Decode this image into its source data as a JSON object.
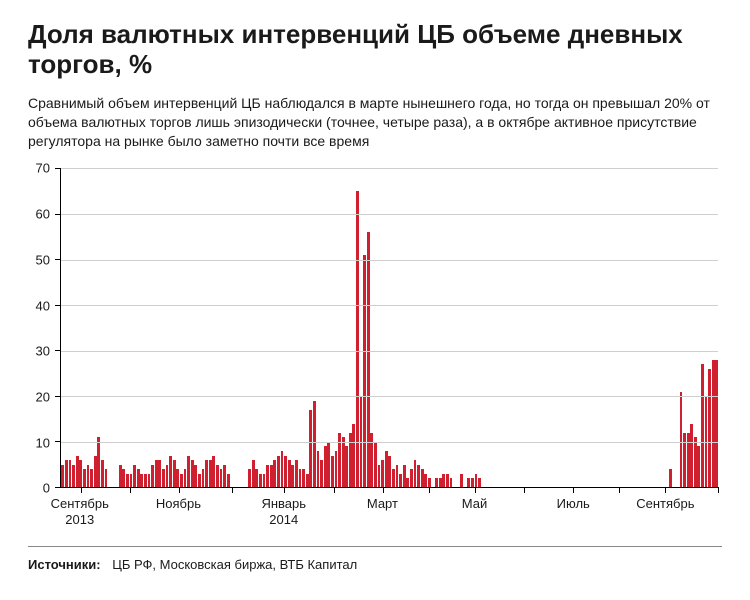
{
  "title": "Доля валютных интервенций ЦБ объеме дневных торгов, %",
  "subtitle": "Сравнимый объем интервенций ЦБ наблюдался в марте нынешнего года, но тогда он превышал 20% от объема валютных торгов лишь эпизодически (точнее, четыре раза), а в октябре активное присутствие регулятора на рынке было заметно почти все время",
  "sources_label": "Источники:",
  "sources_text": "ЦБ РФ, Московская биржа, ВТБ Капитал",
  "chart": {
    "type": "bar",
    "ylim": [
      0,
      70
    ],
    "yticks": [
      0,
      10,
      20,
      30,
      40,
      50,
      60,
      70
    ],
    "grid_color": "#cfcfcf",
    "axis_color": "#000000",
    "bar_color": "#d01f2e",
    "background_color": "#ffffff",
    "title_fontsize": 26,
    "subtitle_fontsize": 14,
    "tick_fontsize": 13,
    "x_labels": [
      {
        "pos_pct": 3,
        "line1": "Сентябрь",
        "line2": "2013"
      },
      {
        "pos_pct": 18,
        "line1": "Ноябрь",
        "line2": ""
      },
      {
        "pos_pct": 34,
        "line1": "Январь",
        "line2": "2014"
      },
      {
        "pos_pct": 49,
        "line1": "Март",
        "line2": ""
      },
      {
        "pos_pct": 63,
        "line1": "Май",
        "line2": ""
      },
      {
        "pos_pct": 78,
        "line1": "Июль",
        "line2": ""
      },
      {
        "pos_pct": 92,
        "line1": "Сентябрь",
        "line2": ""
      }
    ],
    "x_tick_positions_pct": [
      3,
      10.5,
      18,
      26,
      34,
      41.5,
      49,
      56,
      63,
      70.5,
      78,
      85,
      92,
      100
    ],
    "values": [
      5,
      6,
      6,
      5,
      7,
      6,
      4,
      5,
      4,
      7,
      11,
      6,
      4,
      0,
      0,
      0,
      5,
      4,
      3,
      3,
      5,
      4,
      3,
      3,
      3,
      5,
      6,
      6,
      4,
      5,
      7,
      6,
      4,
      3,
      4,
      7,
      6,
      5,
      3,
      4,
      6,
      6,
      7,
      5,
      4,
      5,
      3,
      0,
      0,
      0,
      0,
      0,
      4,
      6,
      4,
      3,
      3,
      5,
      5,
      6,
      7,
      8,
      7,
      6,
      5,
      6,
      4,
      4,
      3,
      17,
      19,
      8,
      6,
      9,
      10,
      7,
      8,
      12,
      11,
      9,
      12,
      14,
      65,
      20,
      51,
      56,
      12,
      10,
      5,
      6,
      8,
      7,
      4,
      5,
      3,
      5,
      2,
      4,
      6,
      5,
      4,
      3,
      2,
      0,
      2,
      2,
      3,
      3,
      2,
      0,
      0,
      3,
      0,
      2,
      2,
      3,
      2,
      0,
      0,
      0,
      0,
      0,
      0,
      0,
      0,
      0,
      0,
      0,
      0,
      0,
      0,
      0,
      0,
      0,
      0,
      0,
      0,
      0,
      0,
      0,
      0,
      0,
      0,
      0,
      0,
      0,
      0,
      0,
      0,
      0,
      0,
      0,
      0,
      0,
      0,
      0,
      0,
      0,
      0,
      0,
      0,
      0,
      0,
      0,
      0,
      0,
      0,
      0,
      0,
      4,
      0,
      0,
      21,
      12,
      12,
      14,
      11,
      9,
      27,
      20,
      26,
      28,
      28
    ]
  }
}
